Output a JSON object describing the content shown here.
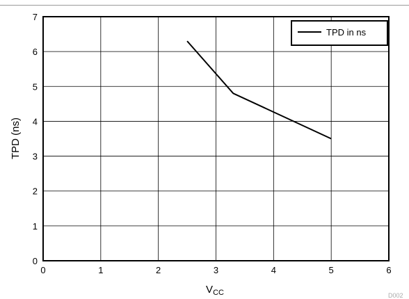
{
  "chart_data": {
    "type": "line",
    "title": "",
    "xlabel": "V",
    "xlabel_sub": "CC",
    "ylabel": "TPD (ns)",
    "xlim": [
      0,
      6
    ],
    "ylim": [
      0,
      7
    ],
    "xticks": [
      "0",
      "1",
      "2",
      "3",
      "4",
      "5",
      "6"
    ],
    "yticks": [
      "0",
      "1",
      "2",
      "3",
      "4",
      "5",
      "6",
      "7"
    ],
    "grid": true,
    "legend_position": "top-right",
    "series": [
      {
        "name": "TPD in ns",
        "color": "#000000",
        "x": [
          2.5,
          3.3,
          5.0
        ],
        "y": [
          6.3,
          4.8,
          3.5
        ]
      }
    ],
    "figure_code": "D002"
  }
}
